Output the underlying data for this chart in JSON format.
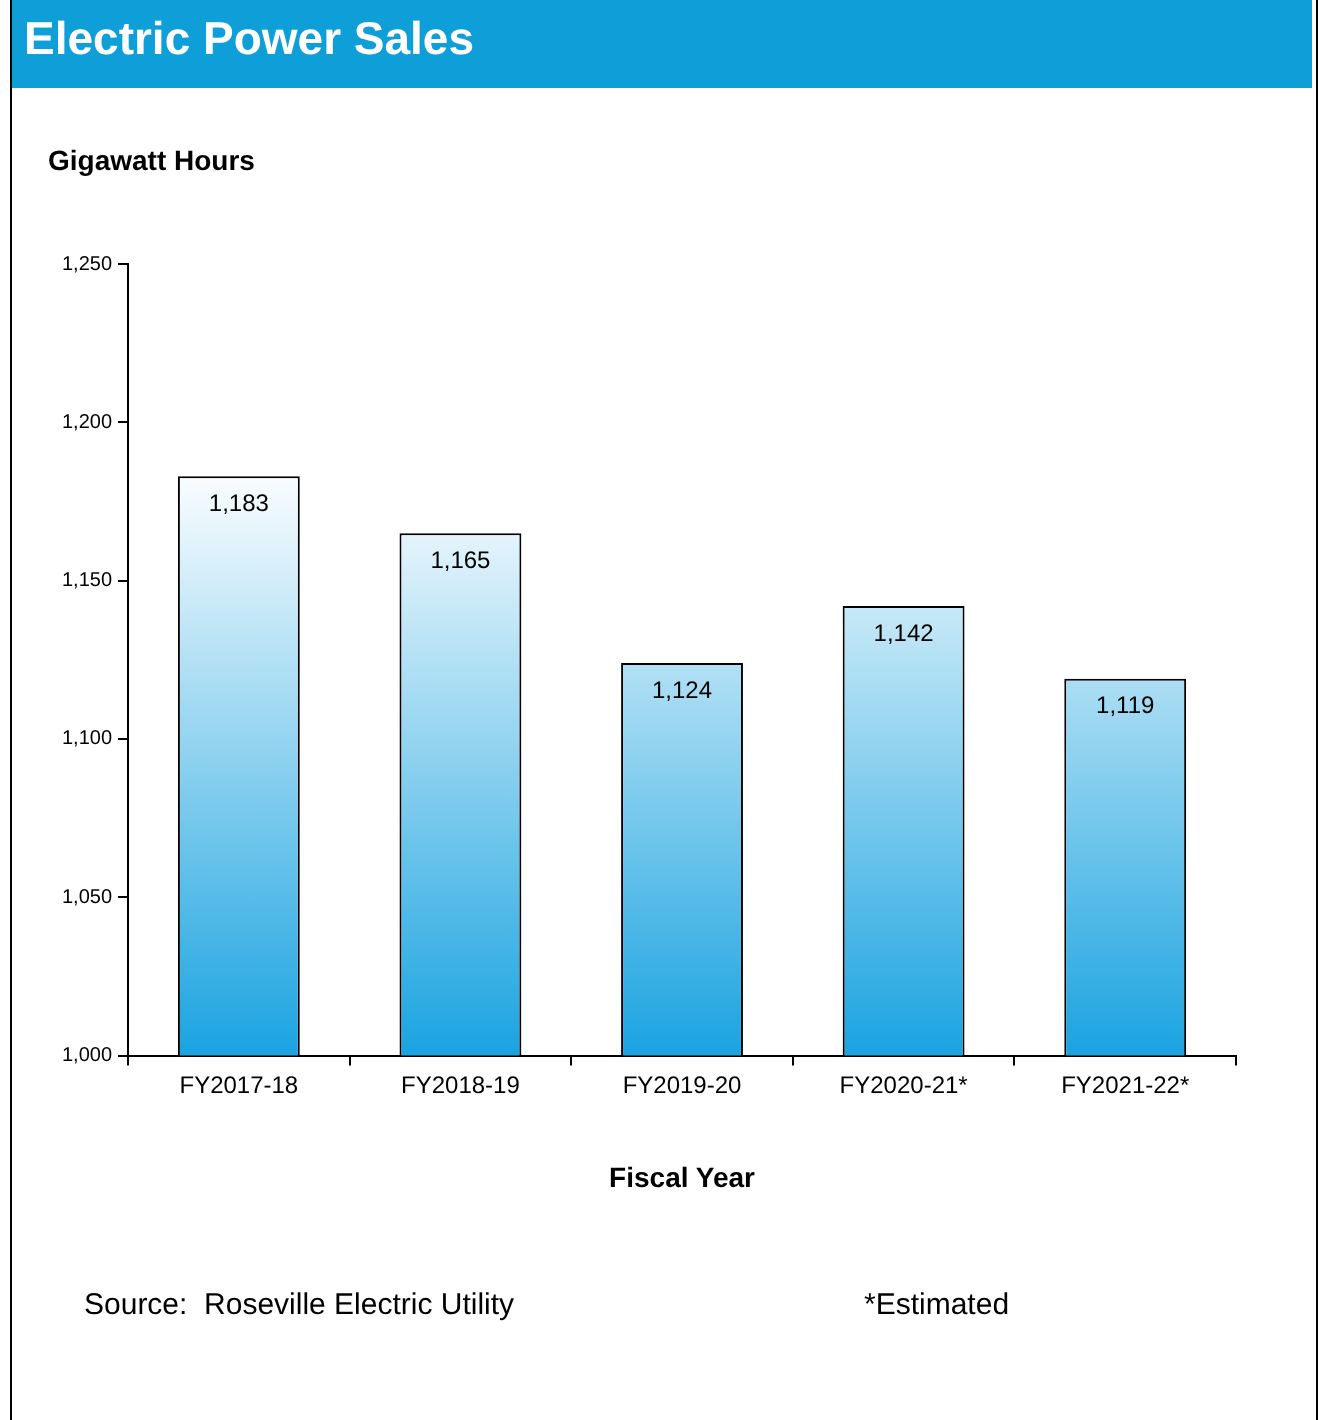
{
  "chart_data": {
    "type": "bar",
    "title": "Electric Power Sales",
    "ylabel": "Gigawatt Hours",
    "xlabel": "Fiscal Year",
    "categories": [
      "FY2017-18",
      "FY2018-19",
      "FY2019-20",
      "FY2020-21*",
      "FY2021-22*"
    ],
    "values": [
      1183,
      1165,
      1124,
      1142,
      1119
    ],
    "color": "#1aa3e0",
    "ylim": [
      1000,
      1250
    ],
    "yticks": [
      {
        "value": 1000,
        "label": "1,000"
      },
      {
        "value": 1050,
        "label": "1,050"
      },
      {
        "value": 1100,
        "label": "1,100"
      },
      {
        "value": 1150,
        "label": "1,150"
      },
      {
        "value": 1200,
        "label": "1,200"
      },
      {
        "value": 1250,
        "label": "1,250"
      }
    ],
    "value_labels": [
      "1,183",
      "1,165",
      "1,124",
      "1,142",
      "1,119"
    ],
    "annotations": [
      "Source:  Roseville Electric Utility",
      "*Estimated"
    ]
  }
}
